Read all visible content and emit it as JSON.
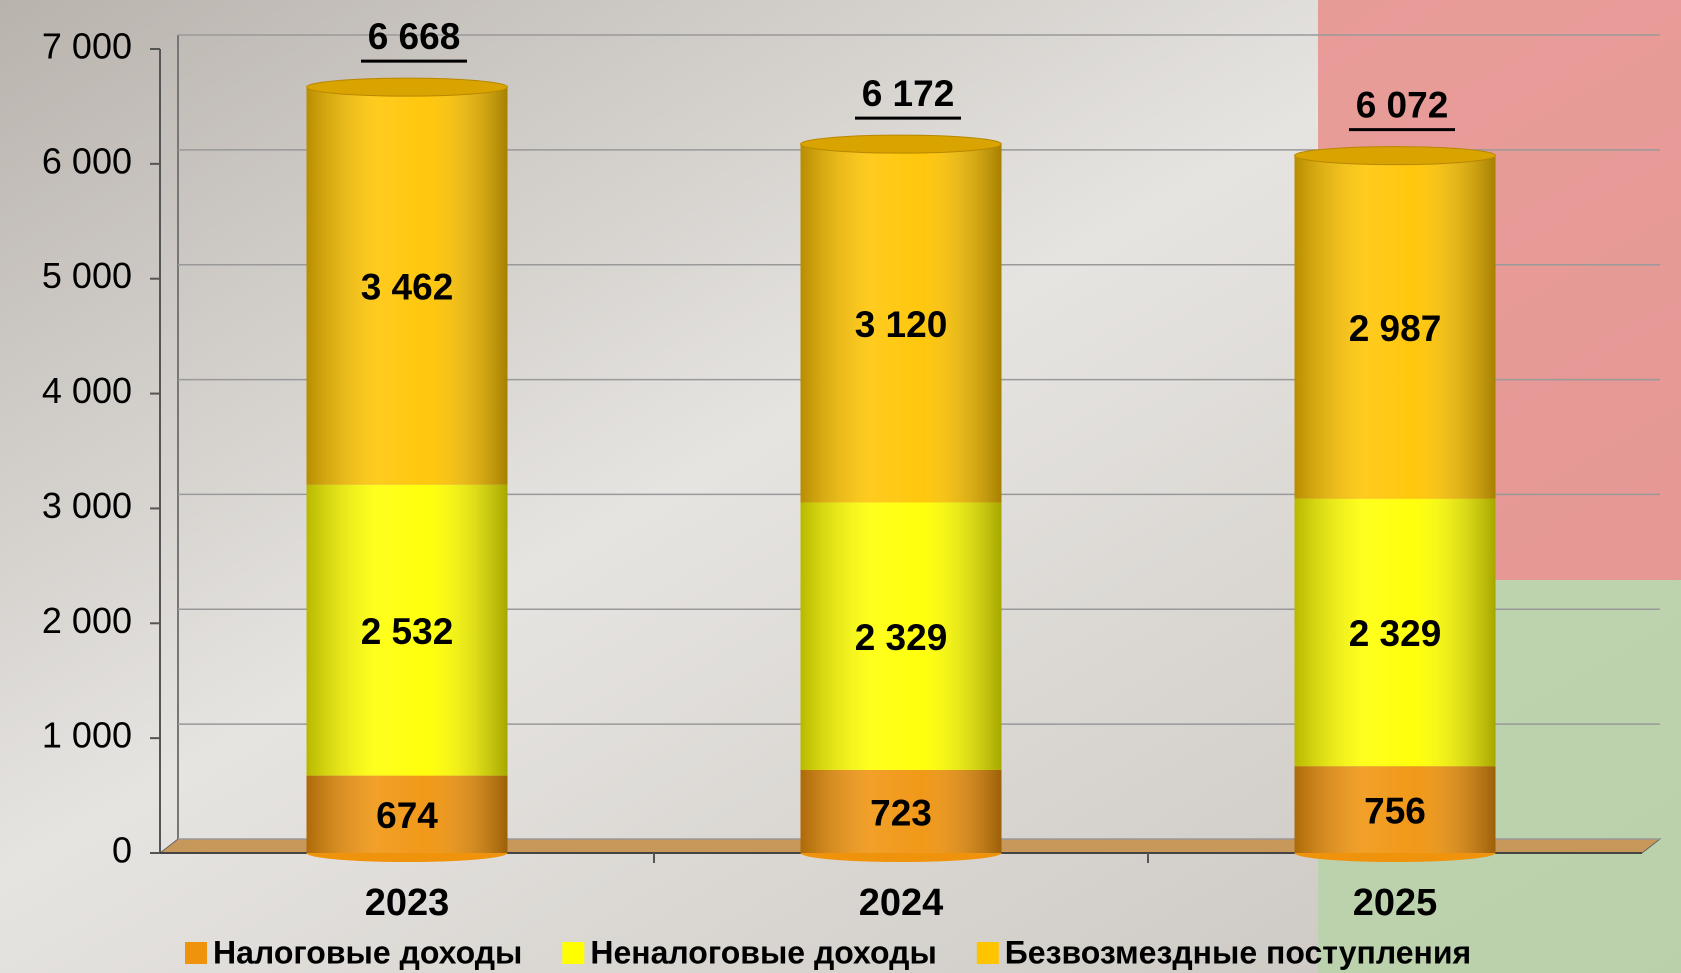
{
  "chart_data": {
    "type": "bar",
    "stacked": true,
    "categories": [
      "2023",
      "2024",
      "2025"
    ],
    "series": [
      {
        "name": "Налоговые доходы",
        "color": "#f0930c",
        "values": [
          674,
          723,
          756
        ],
        "value_labels": [
          "674",
          "723",
          "756"
        ]
      },
      {
        "name": "Неналоговые доходы",
        "color": "#ffff00",
        "values": [
          2532,
          2329,
          2329
        ],
        "value_labels": [
          "2 532",
          "2 329",
          "2 329"
        ]
      },
      {
        "name": "Безвозмездные поступления",
        "color": "#ffc400",
        "values": [
          3462,
          3120,
          2987
        ],
        "value_labels": [
          "3 462",
          "3 120",
          "2 987"
        ]
      }
    ],
    "totals": [
      6668,
      6172,
      6072
    ],
    "total_labels": [
      "6 668",
      "6 172",
      "6 072"
    ],
    "ylim": [
      0,
      7000
    ],
    "yticks": [
      0,
      {
        "value": 1000,
        "label": "1 000"
      },
      {
        "value": 2000,
        "label": "2 000"
      },
      {
        "value": 3000,
        "label": "3 000"
      },
      {
        "value": 4000,
        "label": "4 000"
      },
      {
        "value": 5000,
        "label": "5 000"
      },
      {
        "value": 6000,
        "label": "6 000"
      },
      {
        "value": 7000,
        "label": "7 000"
      }
    ],
    "grid": true,
    "legend": "bottom"
  }
}
